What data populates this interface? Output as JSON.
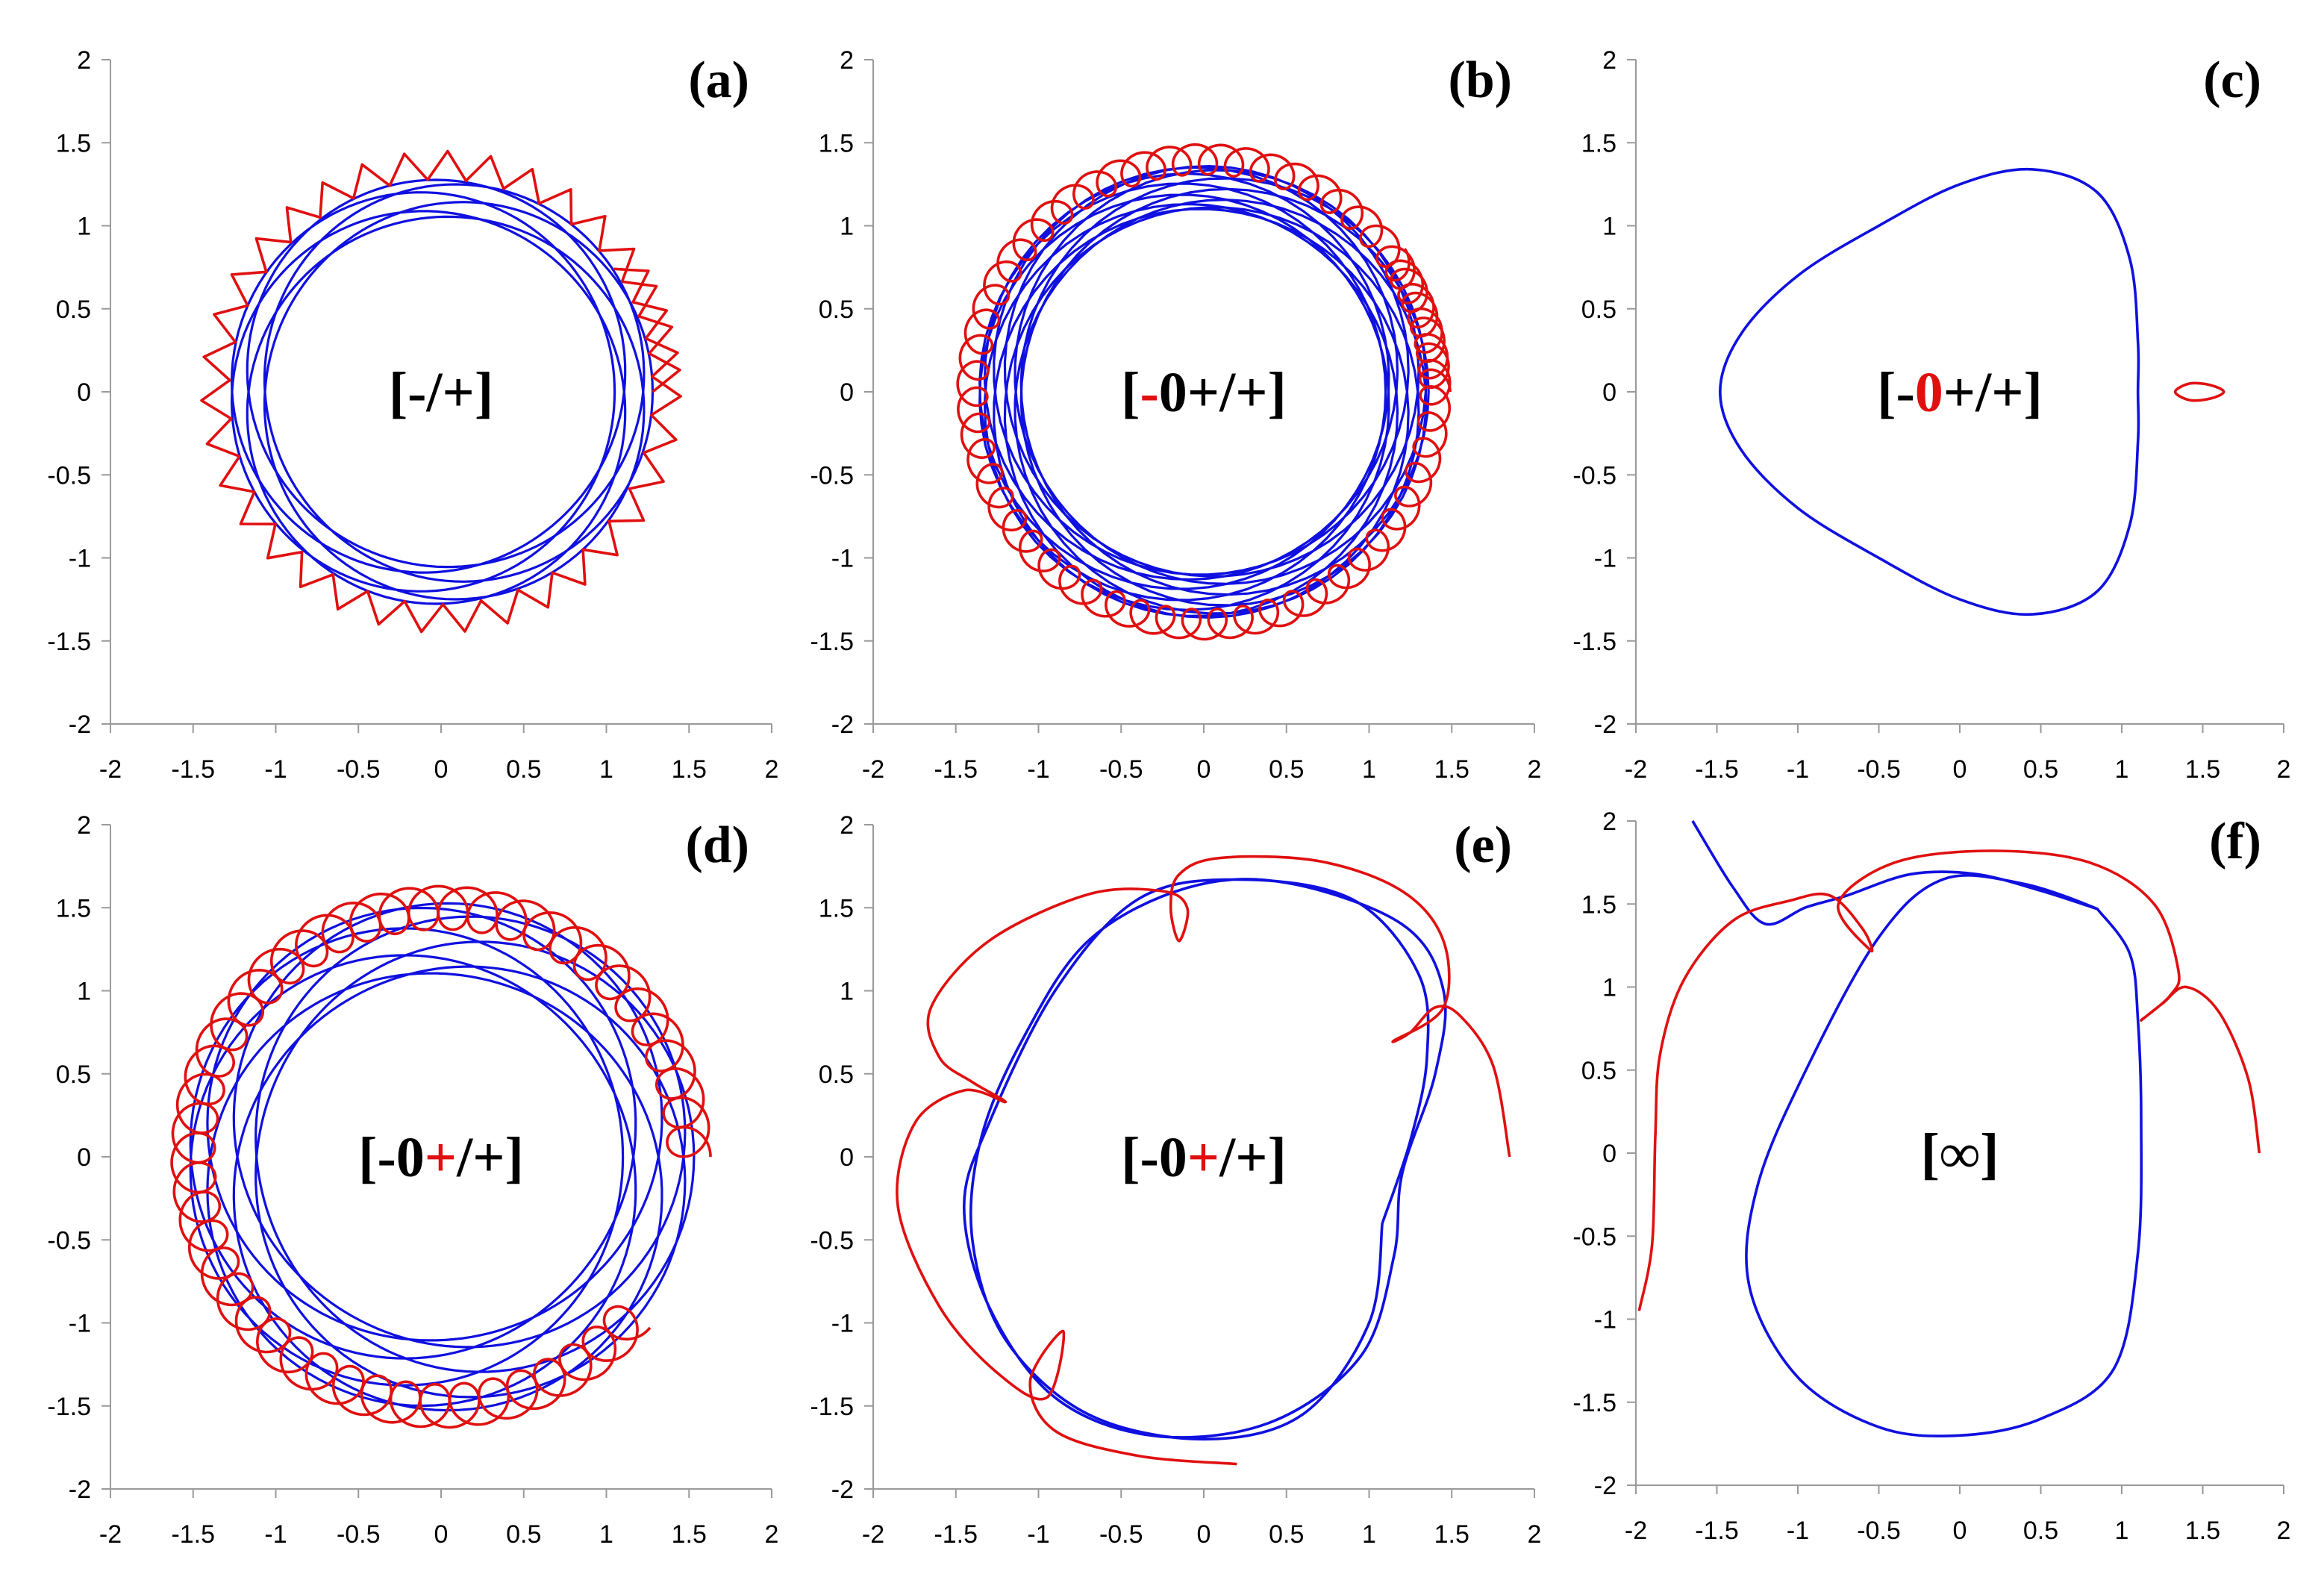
{
  "colors": {
    "blue_series": "#1010e0",
    "red_series": "#e01010",
    "axis": "#9a9a9a",
    "text": "#000000"
  },
  "chart_data": [
    {
      "type": "line",
      "panel_label": "(a)",
      "label_segments": [
        {
          "text": "[-/+]",
          "color": "#000000"
        }
      ],
      "xlim": [
        -2,
        2
      ],
      "ylim": [
        -2,
        2
      ],
      "x_ticks": [
        "-2",
        "-1.5",
        "-1",
        "-0.5",
        "0",
        "0.5",
        "1",
        "1.5",
        "2"
      ],
      "y_ticks": [
        "2",
        "1.5",
        "1",
        "0.5",
        "0",
        "-0.5",
        "-1",
        "-1.5",
        "-2"
      ],
      "series": [
        {
          "color": "#1010e0",
          "kind": "rosette",
          "r_min": 1.05,
          "r_max": 1.28,
          "cycles": 20,
          "lobes": 7
        },
        {
          "color": "#e01010",
          "kind": "zigzag",
          "r_min": 1.28,
          "r_max": 1.45,
          "teeth": 38,
          "theta_start": 0,
          "theta_end": 6.9
        }
      ]
    },
    {
      "type": "line",
      "panel_label": "(b)",
      "label_segments": [
        {
          "text": "[",
          "color": "#000000"
        },
        {
          "text": "-",
          "color": "#e01010"
        },
        {
          "text": "0+/+]",
          "color": "#000000"
        }
      ],
      "xlim": [
        -2,
        2
      ],
      "ylim": [
        -2,
        2
      ],
      "x_ticks": [
        "-2",
        "-1.5",
        "-1",
        "-0.5",
        "0",
        "0.5",
        "1",
        "1.5",
        "2"
      ],
      "y_ticks": [
        "2",
        "1.5",
        "1",
        "0.5",
        "0",
        "-0.5",
        "-1",
        "-1.5",
        "-2"
      ],
      "series": [
        {
          "color": "#1010e0",
          "kind": "rosette",
          "r_min": 1.1,
          "r_max": 1.36,
          "cycles": 40,
          "lobes": 13
        },
        {
          "color": "#e01010",
          "kind": "loops",
          "r_center": 1.4,
          "loop_r": 0.09,
          "loops": 60,
          "theta_start": 0,
          "theta_end": 6.9
        }
      ]
    },
    {
      "type": "line",
      "panel_label": "(c)",
      "label_segments": [
        {
          "text": "[-",
          "color": "#000000"
        },
        {
          "text": "0",
          "color": "#e01010"
        },
        {
          "text": "+/+]",
          "color": "#000000"
        }
      ],
      "xlim": [
        -2,
        2
      ],
      "ylim": [
        -2,
        2
      ],
      "x_ticks": [
        "-2",
        "-1.5",
        "-1",
        "-0.5",
        "0",
        "0.5",
        "1",
        "1.5",
        "2"
      ],
      "y_ticks": [
        "2",
        "1.5",
        "1",
        "0.5",
        "0",
        "-0.5",
        "-1",
        "-1.5",
        "-2"
      ],
      "series": [
        {
          "color": "#1010e0",
          "kind": "path",
          "closed": true,
          "points": [
            [
              -1.48,
              0
            ],
            [
              -1.35,
              0.35
            ],
            [
              -1.0,
              0.7
            ],
            [
              -0.5,
              1.0
            ],
            [
              0,
              1.25
            ],
            [
              0.45,
              1.34
            ],
            [
              0.85,
              1.2
            ],
            [
              1.05,
              0.8
            ],
            [
              1.1,
              0.3
            ],
            [
              1.1,
              0
            ],
            [
              1.1,
              -0.3
            ],
            [
              1.05,
              -0.8
            ],
            [
              0.85,
              -1.2
            ],
            [
              0.45,
              -1.34
            ],
            [
              0,
              -1.25
            ],
            [
              -0.5,
              -1.0
            ],
            [
              -1.0,
              -0.7
            ],
            [
              -1.35,
              -0.35
            ]
          ]
        },
        {
          "color": "#e01010",
          "kind": "path",
          "closed": true,
          "points": [
            [
              1.33,
              0
            ],
            [
              1.42,
              0.05
            ],
            [
              1.55,
              0.04
            ],
            [
              1.63,
              0
            ],
            [
              1.55,
              -0.04
            ],
            [
              1.42,
              -0.05
            ]
          ]
        }
      ]
    },
    {
      "type": "line",
      "panel_label": "(d)",
      "label_segments": [
        {
          "text": "[-0",
          "color": "#000000"
        },
        {
          "text": "+",
          "color": "#e01010"
        },
        {
          "text": "/+]",
          "color": "#000000"
        }
      ],
      "xlim": [
        -2,
        2
      ],
      "ylim": [
        -2,
        2
      ],
      "x_ticks": [
        "-2",
        "-1.5",
        "-1",
        "-0.5",
        "0",
        "0.5",
        "1",
        "1.5",
        "2"
      ],
      "y_ticks": [
        "2",
        "1.5",
        "1",
        "0.5",
        "0",
        "-0.5",
        "-1",
        "-1.5",
        "-2"
      ],
      "series": [
        {
          "color": "#1010e0",
          "kind": "rosette",
          "r_min": 1.1,
          "r_max": 1.53,
          "cycles": 20,
          "lobes": 9
        },
        {
          "color": "#e01010",
          "kind": "loops",
          "r_center": 1.5,
          "loop_r": 0.13,
          "loops": 46,
          "theta_start": 0,
          "theta_end": 5.6
        }
      ]
    },
    {
      "type": "line",
      "panel_label": "(e)",
      "label_segments": [
        {
          "text": "[-0",
          "color": "#000000"
        },
        {
          "text": "+",
          "color": "#e01010"
        },
        {
          "text": "/+]",
          "color": "#000000"
        }
      ],
      "xlim": [
        -2,
        2
      ],
      "ylim": [
        -2,
        2
      ],
      "x_ticks": [
        "-2",
        "-1.5",
        "-1",
        "-0.5",
        "0",
        "0.5",
        "1",
        "1.5",
        "2"
      ],
      "y_ticks": [
        "2",
        "1.5",
        "1",
        "0.5",
        "0",
        "-0.5",
        "-1",
        "-1.5",
        "-2"
      ],
      "series": [
        {
          "color": "#1010e0",
          "kind": "path",
          "closed": false,
          "points": [
            [
              1.08,
              -0.4
            ],
            [
              1.25,
              0.1
            ],
            [
              1.35,
              0.6
            ],
            [
              1.3,
              1.1
            ],
            [
              0.9,
              1.55
            ],
            [
              0.2,
              1.67
            ],
            [
              -0.4,
              1.55
            ],
            [
              -0.9,
              1.0
            ],
            [
              -1.3,
              0.2
            ],
            [
              -1.45,
              -0.3
            ],
            [
              -1.3,
              -0.9
            ],
            [
              -0.9,
              -1.45
            ],
            [
              -0.3,
              -1.68
            ],
            [
              0.4,
              -1.6
            ],
            [
              0.95,
              -1.2
            ],
            [
              1.15,
              -0.6
            ],
            [
              1.2,
              -0.1
            ],
            [
              1.4,
              0.5
            ],
            [
              1.45,
              1.0
            ],
            [
              1.2,
              1.4
            ],
            [
              0.5,
              1.65
            ],
            [
              -0.1,
              1.62
            ],
            [
              -0.7,
              1.3
            ],
            [
              -1.1,
              0.7
            ],
            [
              -1.35,
              0.1
            ],
            [
              -1.4,
              -0.5
            ],
            [
              -1.2,
              -1.1
            ],
            [
              -0.7,
              -1.55
            ],
            [
              0,
              -1.7
            ],
            [
              0.6,
              -1.55
            ],
            [
              1.0,
              -1.0
            ],
            [
              1.08,
              -0.4
            ]
          ]
        },
        {
          "color": "#e01010",
          "kind": "path",
          "closed": false,
          "points": [
            [
              1.85,
              0
            ],
            [
              1.75,
              0.55
            ],
            [
              1.55,
              0.85
            ],
            [
              1.4,
              0.9
            ],
            [
              1.25,
              0.75
            ],
            [
              1.15,
              0.7
            ],
            [
              1.45,
              0.9
            ],
            [
              1.45,
              1.3
            ],
            [
              1.2,
              1.6
            ],
            [
              0.7,
              1.78
            ],
            [
              0.1,
              1.8
            ],
            [
              -0.15,
              1.7
            ],
            [
              -0.2,
              1.5
            ],
            [
              -0.15,
              1.3
            ],
            [
              -0.1,
              1.5
            ],
            [
              -0.25,
              1.6
            ],
            [
              -0.7,
              1.58
            ],
            [
              -1.3,
              1.3
            ],
            [
              -1.65,
              0.9
            ],
            [
              -1.6,
              0.6
            ],
            [
              -1.4,
              0.45
            ],
            [
              -1.2,
              0.33
            ],
            [
              -1.45,
              0.4
            ],
            [
              -1.75,
              0.2
            ],
            [
              -1.85,
              -0.3
            ],
            [
              -1.6,
              -0.9
            ],
            [
              -1.25,
              -1.3
            ],
            [
              -0.95,
              -1.45
            ],
            [
              -0.85,
              -1.05
            ],
            [
              -1.05,
              -1.35
            ],
            [
              -0.9,
              -1.65
            ],
            [
              -0.4,
              -1.8
            ],
            [
              0.2,
              -1.85
            ]
          ]
        }
      ]
    },
    {
      "type": "line",
      "panel_label": "(f)",
      "label_segments": [
        {
          "text": "[∞]",
          "color": "#000000"
        }
      ],
      "xlim": [
        -2,
        2
      ],
      "ylim": [
        -2,
        2
      ],
      "x_ticks": [
        "-2",
        "-1.5",
        "-1",
        "-0.5",
        "0",
        "0.5",
        "1",
        "1.5",
        "2"
      ],
      "y_ticks": [
        "2",
        "1.5",
        "1",
        "0.5",
        "0",
        "-0.5",
        "-1",
        "-1.5",
        "-2"
      ],
      "series": [
        {
          "color": "#1010e0",
          "kind": "path",
          "closed": false,
          "points": [
            [
              -1.65,
              2.0
            ],
            [
              -1.4,
              1.6
            ],
            [
              -1.2,
              1.38
            ],
            [
              -0.95,
              1.48
            ],
            [
              -0.7,
              1.55
            ],
            [
              -0.3,
              1.68
            ],
            [
              0.1,
              1.68
            ],
            [
              0.5,
              1.58
            ],
            [
              0.85,
              1.47
            ],
            [
              0.4,
              1.62
            ],
            [
              -0.1,
              1.65
            ],
            [
              -0.5,
              1.3
            ],
            [
              -0.95,
              0.5
            ],
            [
              -1.25,
              -0.2
            ],
            [
              -1.3,
              -0.8
            ],
            [
              -1.0,
              -1.35
            ],
            [
              -0.5,
              -1.65
            ],
            [
              0,
              -1.7
            ],
            [
              0.5,
              -1.6
            ],
            [
              0.95,
              -1.3
            ],
            [
              1.1,
              -0.6
            ],
            [
              1.12,
              0.2
            ],
            [
              1.1,
              0.8
            ],
            [
              1.05,
              1.2
            ],
            [
              0.85,
              1.47
            ]
          ]
        },
        {
          "color": "#e01010",
          "kind": "path",
          "closed": false,
          "points": [
            [
              -1.98,
              -0.95
            ],
            [
              -1.9,
              -0.55
            ],
            [
              -1.88,
              0.1
            ],
            [
              -1.85,
              0.6
            ],
            [
              -1.7,
              1.05
            ],
            [
              -1.4,
              1.4
            ],
            [
              -1.05,
              1.52
            ],
            [
              -0.8,
              1.55
            ],
            [
              -0.6,
              1.35
            ],
            [
              -0.55,
              1.22
            ],
            [
              -0.75,
              1.5
            ],
            [
              -0.4,
              1.75
            ],
            [
              0.2,
              1.82
            ],
            [
              0.8,
              1.75
            ],
            [
              1.2,
              1.5
            ],
            [
              1.35,
              1.1
            ],
            [
              1.3,
              0.95
            ],
            [
              1.12,
              0.8
            ],
            [
              1.25,
              0.9
            ],
            [
              1.4,
              1.0
            ],
            [
              1.6,
              0.85
            ],
            [
              1.78,
              0.45
            ],
            [
              1.85,
              0
            ]
          ]
        }
      ]
    }
  ]
}
